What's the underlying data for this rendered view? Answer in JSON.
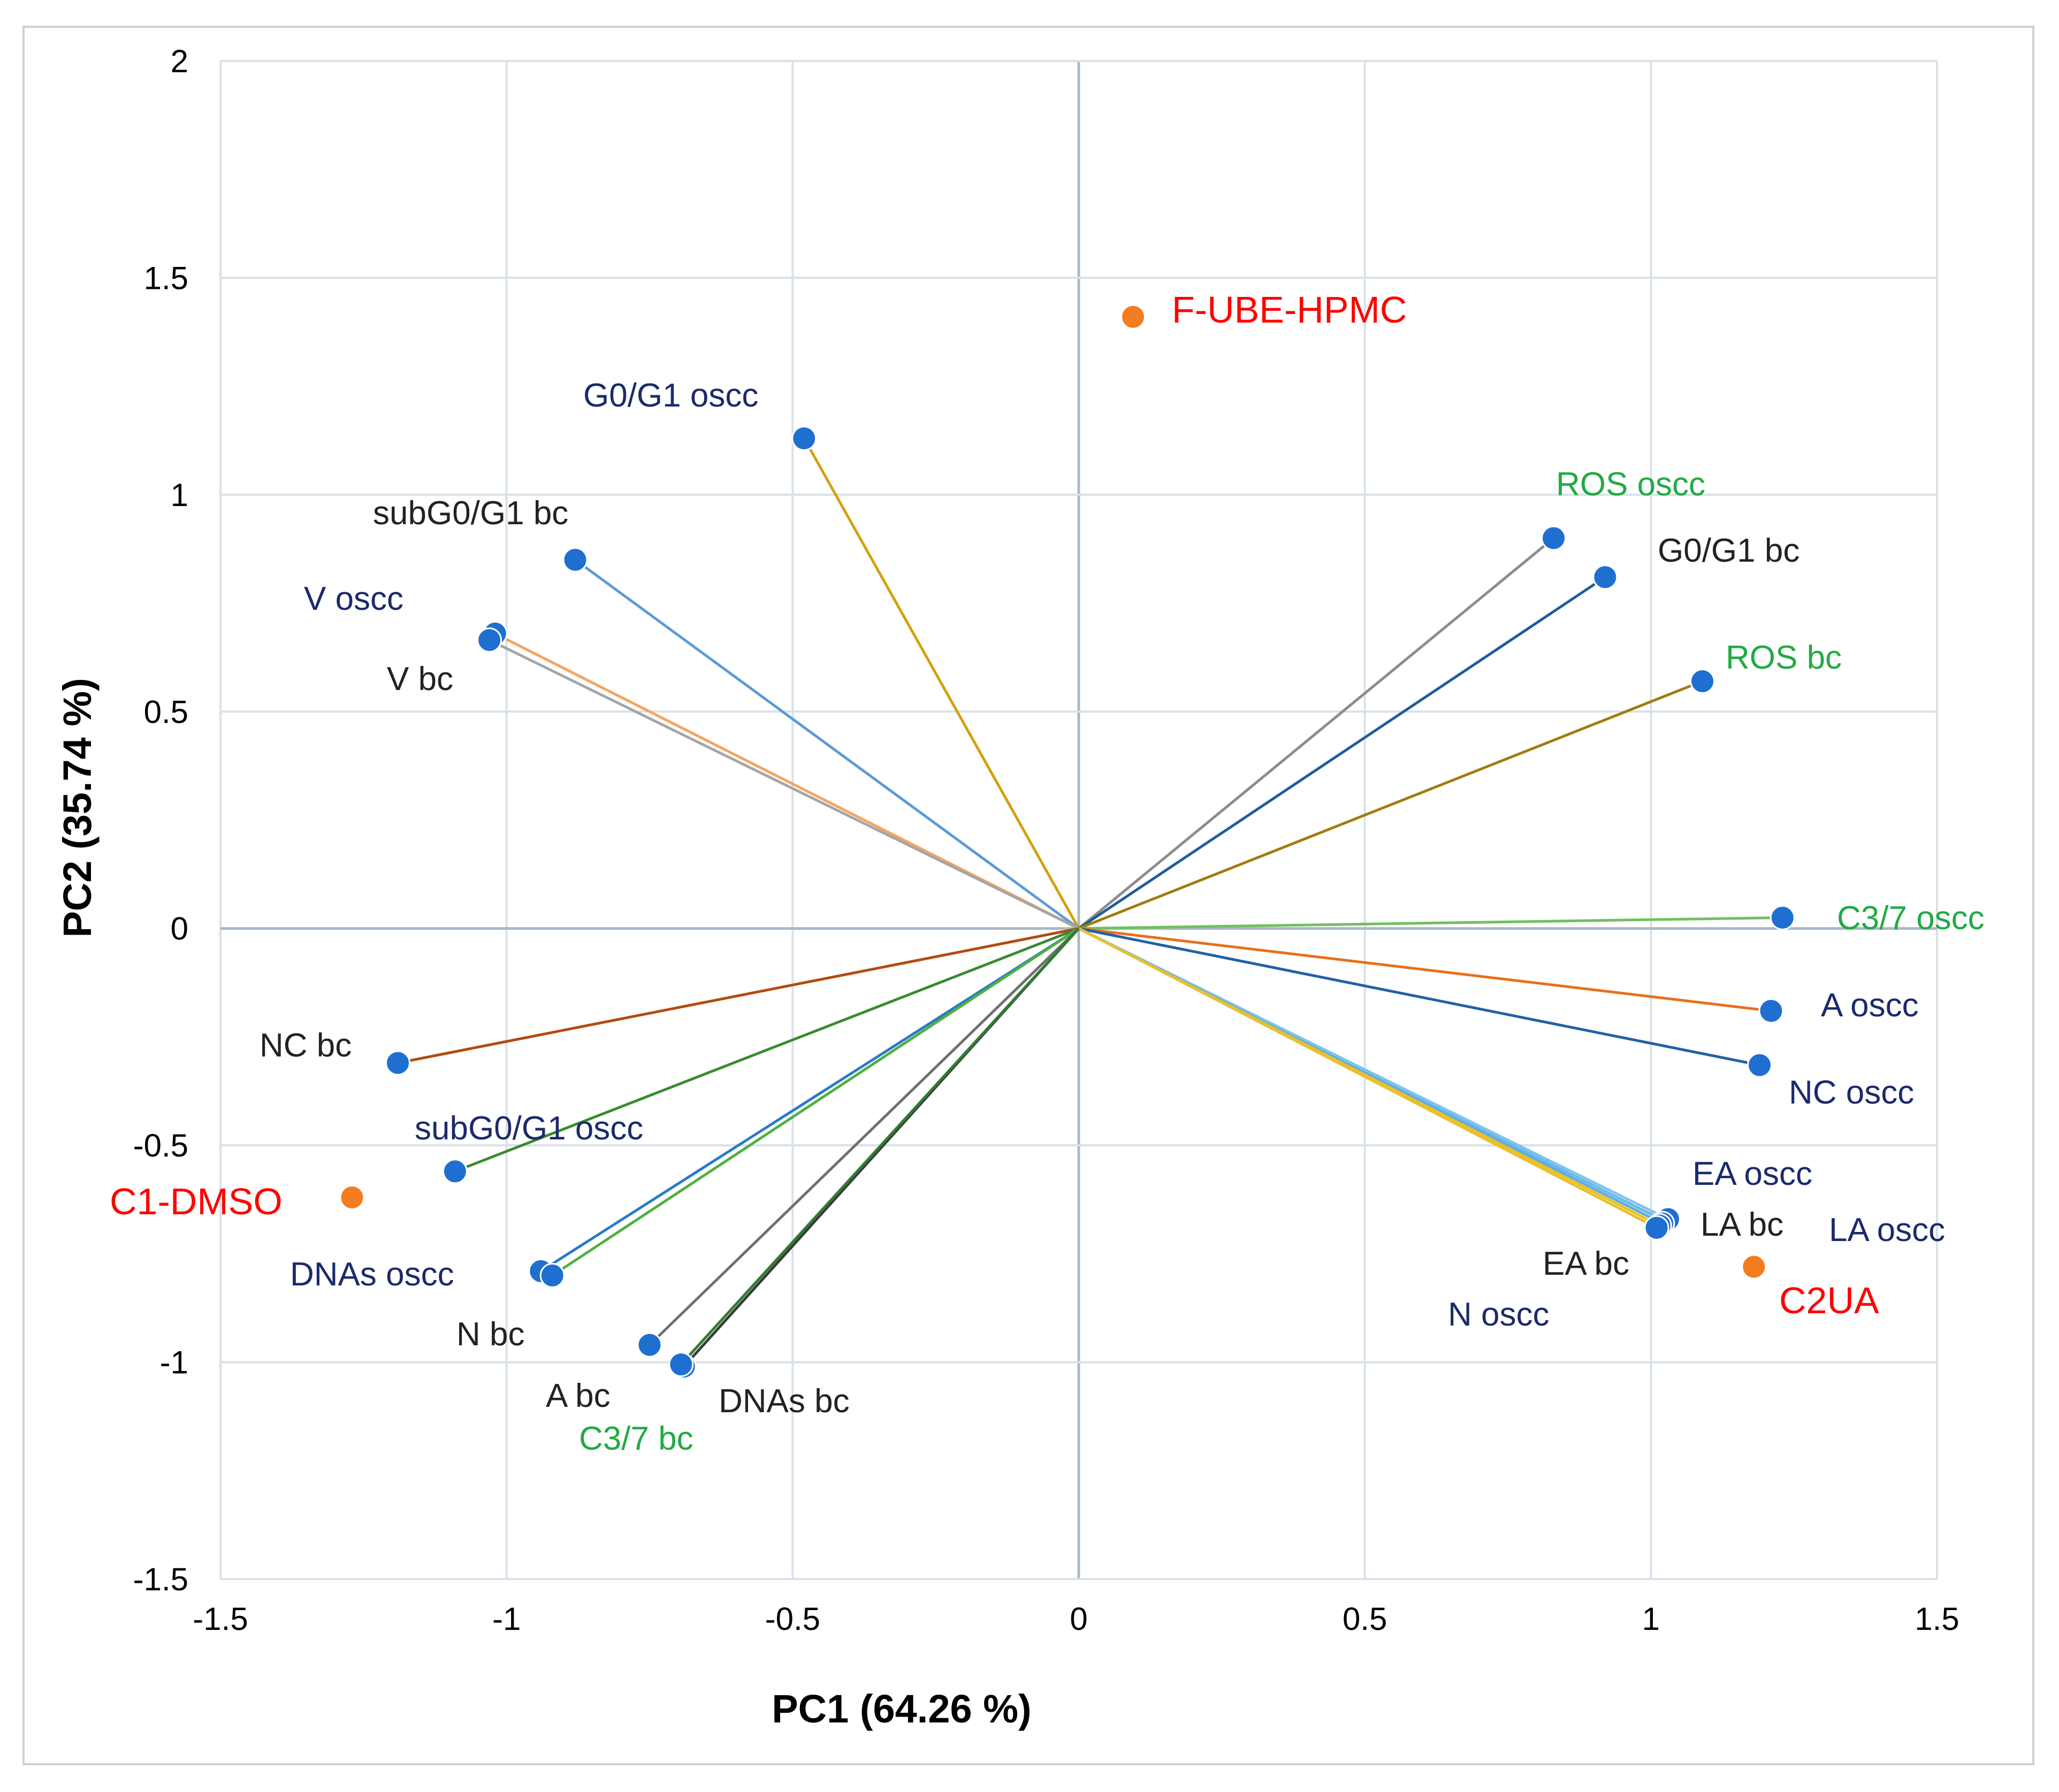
{
  "chart_data": {
    "type": "scatter",
    "subtype": "pca-biplot",
    "title": "",
    "xlabel": "PC1 (64.26 %)",
    "ylabel": "PC2 (35.74 %)",
    "xlim": [
      -1.5,
      1.5
    ],
    "ylim": [
      -1.5,
      2
    ],
    "xticks": [
      -1.5,
      -1,
      -0.5,
      0,
      0.5,
      1,
      1.5
    ],
    "yticks": [
      -1.5,
      -1,
      -0.5,
      0,
      0.5,
      1,
      1.5,
      2
    ],
    "xtick_labels": [
      "-1.5",
      "-1",
      "-0.5",
      "0",
      "0.5",
      "1",
      "1.5"
    ],
    "ytick_labels": [
      "-1.5",
      "-1",
      "-0.5",
      "0",
      "0.5",
      "1",
      "1.5",
      "2"
    ],
    "grid": true,
    "colors": {
      "variable_point": "#1f6fd1",
      "observation_point": "#f47c20",
      "observation_label": "#ff0000",
      "navy_label": "#1b2a6b",
      "green_label": "#22aa44",
      "black_label": "#222222",
      "grid": "#d9e1e8",
      "zero_axis": "#a9b7c6"
    },
    "variables": [
      {
        "name": "G0/G1 oscc",
        "x": -0.48,
        "y": 1.13,
        "line": "#d4a010",
        "label_color": "#1b2a6b"
      },
      {
        "name": "subG0/G1 bc",
        "x": -0.88,
        "y": 0.85,
        "line": "#5b9bd5",
        "label_color": "#222222"
      },
      {
        "name": "V oscc",
        "x": -1.02,
        "y": 0.68,
        "line": "#f4a460",
        "label_color": "#1b2a6b"
      },
      {
        "name": "V bc",
        "x": -1.03,
        "y": 0.665,
        "line": "#a5a5a5",
        "label_color": "#222222"
      },
      {
        "name": "ROS oscc",
        "x": 0.83,
        "y": 0.9,
        "line": "#8c8c8c",
        "label_color": "#22aa44"
      },
      {
        "name": "G0/G1 bc",
        "x": 0.92,
        "y": 0.81,
        "line": "#1f5c99",
        "label_color": "#222222"
      },
      {
        "name": "ROS bc",
        "x": 1.09,
        "y": 0.57,
        "line": "#a07c10",
        "label_color": "#22aa44"
      },
      {
        "name": "C3/7 oscc",
        "x": 1.23,
        "y": 0.025,
        "line": "#70c060",
        "label_color": "#22aa44"
      },
      {
        "name": "A oscc",
        "x": 1.21,
        "y": -0.19,
        "line": "#e8701a",
        "label_color": "#1b2a6b"
      },
      {
        "name": "NC oscc",
        "x": 1.19,
        "y": -0.315,
        "line": "#2060a8",
        "label_color": "#1b2a6b"
      },
      {
        "name": "EA oscc",
        "x": 1.025,
        "y": -0.675,
        "line": "#6fb7e8",
        "label_color": "#1b2a6b"
      },
      {
        "name": "LA bc",
        "x": 1.03,
        "y": -0.67,
        "line": "#7fc4f0",
        "label_color": "#222222"
      },
      {
        "name": "LA oscc",
        "x": 1.02,
        "y": -0.68,
        "line": "#5ab0e0",
        "label_color": "#1b2a6b"
      },
      {
        "name": "EA bc",
        "x": 1.015,
        "y": -0.685,
        "line": "#f0c020",
        "label_color": "#222222"
      },
      {
        "name": "N oscc",
        "x": 1.01,
        "y": -0.69,
        "line": "#e8c030",
        "label_color": "#1b2a6b"
      },
      {
        "name": "NC bc",
        "x": -1.19,
        "y": -0.31,
        "line": "#b34a10",
        "label_color": "#222222"
      },
      {
        "name": "subG0/G1 oscc",
        "x": -1.09,
        "y": -0.56,
        "line": "#3a8a30",
        "label_color": "#1b2a6b"
      },
      {
        "name": "DNAs oscc",
        "x": -0.94,
        "y": -0.79,
        "line": "#2a7ac8",
        "label_color": "#1b2a6b"
      },
      {
        "name": "N bc",
        "x": -0.92,
        "y": -0.8,
        "line": "#50b040",
        "label_color": "#222222"
      },
      {
        "name": "A bc",
        "x": -0.75,
        "y": -0.96,
        "line": "#707070",
        "label_color": "#222222"
      },
      {
        "name": "DNAs bc",
        "x": -0.69,
        "y": -1.01,
        "line": "#3a3a3a",
        "label_color": "#222222"
      },
      {
        "name": "C3/7 bc",
        "x": -0.695,
        "y": -1.005,
        "line": "#2e7d32",
        "label_color": "#22aa44"
      }
    ],
    "observations": [
      {
        "name": "F-UBE-HPMC",
        "x": 0.095,
        "y": 1.41
      },
      {
        "name": "C1-DMSO",
        "x": -1.27,
        "y": -0.62
      },
      {
        "name": "C2UA",
        "x": 1.18,
        "y": -0.78
      }
    ]
  }
}
